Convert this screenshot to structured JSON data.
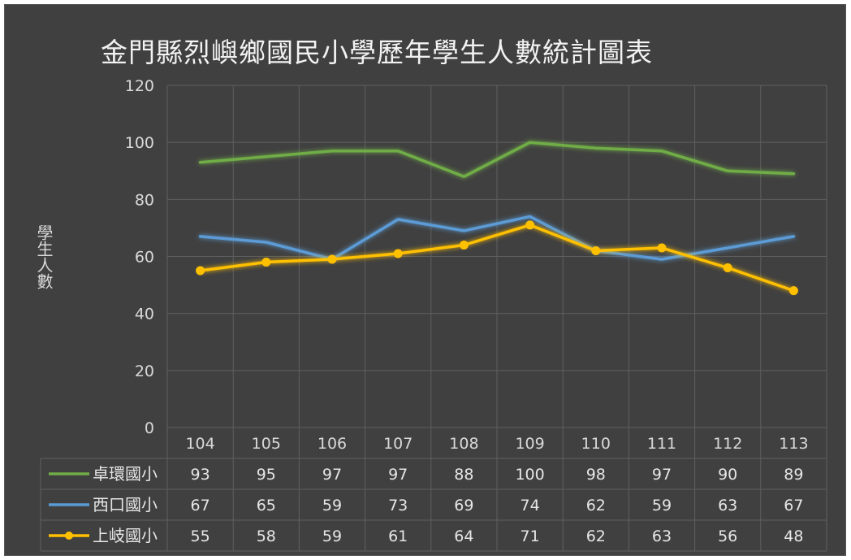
{
  "chart_data": {
    "type": "line",
    "title": "金門縣烈嶼鄉國民小學歷年學生人數統計圖表",
    "ylabel": "學生人數",
    "xlabel": "",
    "ylim": [
      0,
      120
    ],
    "yticks": [
      0,
      20,
      40,
      60,
      80,
      100,
      120
    ],
    "grid": true,
    "categories": [
      "104",
      "105",
      "106",
      "107",
      "108",
      "109",
      "110",
      "111",
      "112",
      "113"
    ],
    "series": [
      {
        "name": "卓環國小",
        "color": "#70ad47",
        "marker": "none",
        "values": [
          93,
          95,
          97,
          97,
          88,
          100,
          98,
          97,
          90,
          89
        ]
      },
      {
        "name": "西口國小",
        "color": "#5b9bd5",
        "marker": "none",
        "values": [
          67,
          65,
          59,
          73,
          69,
          74,
          62,
          59,
          63,
          67
        ]
      },
      {
        "name": "上岐國小",
        "color": "#ffc000",
        "marker": "circle",
        "values": [
          55,
          58,
          59,
          61,
          64,
          71,
          62,
          63,
          56,
          48
        ]
      }
    ],
    "legend": "data-table"
  }
}
